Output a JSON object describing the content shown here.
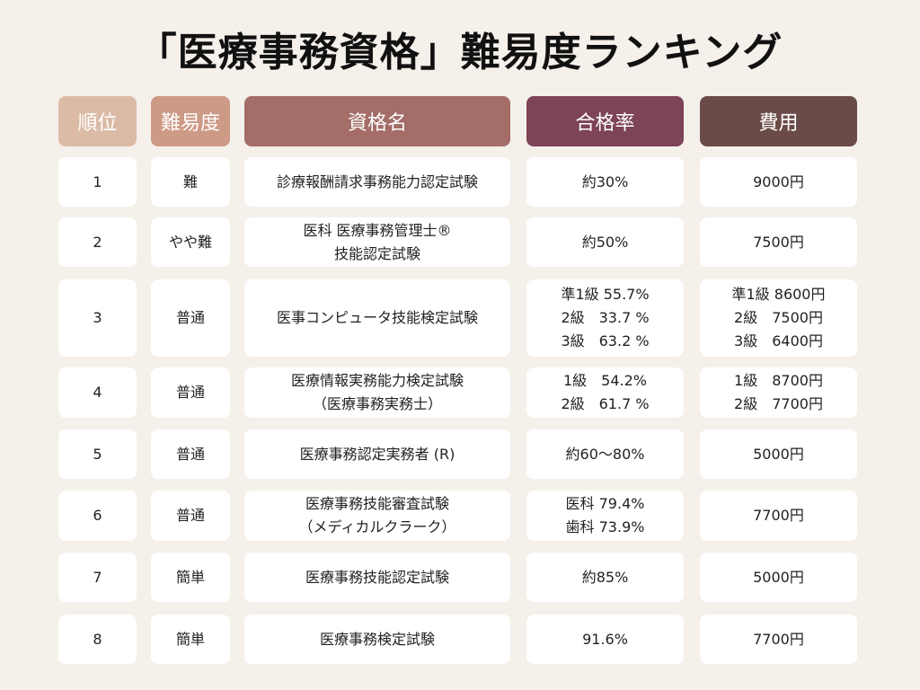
{
  "title": "「医療事務資格」難易度ランキング",
  "headers": [
    "順位",
    "難易度",
    "資格名",
    "合格率",
    "費用"
  ],
  "header_colors": [
    "#dcbba6",
    "#cd9a86",
    "#a46d68",
    "#7d4357",
    "#6b4b47"
  ],
  "rows": [
    {
      "rank": "1",
      "difficulty": "難",
      "name": "診療報酬請求事務能力認定試験",
      "pass_rate": "約30%",
      "cost": "9000円"
    },
    {
      "rank": "2",
      "difficulty": "やや難",
      "name": "医科 医療事務管理士®\n技能認定試験",
      "pass_rate": "約50%",
      "cost": "7500円"
    },
    {
      "rank": "3",
      "difficulty": "普通",
      "name": "医事コンピュータ技能検定試験",
      "pass_rate": "準1級 55.7%\n2級　33.7 %\n3級　63.2 %",
      "cost": "準1級 8600円\n2級　7500円\n3級　6400円"
    },
    {
      "rank": "4",
      "difficulty": "普通",
      "name": "医療情報実務能力検定試験\n（医療事務実務士）",
      "pass_rate": "1級　54.2%\n2級　61.7 %",
      "cost": "1級　8700円\n2級　7700円"
    },
    {
      "rank": "5",
      "difficulty": "普通",
      "name": "医療事務認定実務者 (R)",
      "pass_rate": "約60〜80%",
      "cost": "5000円"
    },
    {
      "rank": "6",
      "difficulty": "普通",
      "name": "医療事務技能審査試験\n（メディカルクラーク）",
      "pass_rate": "医科 79.4%\n歯科 73.9%",
      "cost": "7700円"
    },
    {
      "rank": "7",
      "difficulty": "簡単",
      "name": "医療事務技能認定試験",
      "pass_rate": "約85%",
      "cost": "5000円"
    },
    {
      "rank": "8",
      "difficulty": "簡単",
      "name": "医療事務検定試験",
      "pass_rate": "91.6%",
      "cost": "7700円"
    }
  ]
}
